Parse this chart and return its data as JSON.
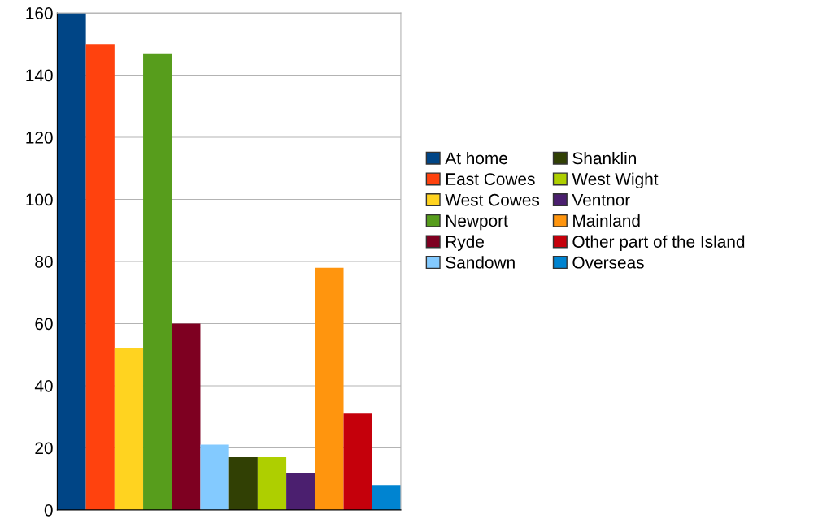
{
  "chart_data": {
    "type": "bar",
    "categories": [
      null
    ],
    "series": [
      {
        "name": "At home",
        "color": "#004586",
        "values": [
          160
        ]
      },
      {
        "name": "East Cowes",
        "color": "#ff420e",
        "values": [
          150
        ]
      },
      {
        "name": "West Cowes",
        "color": "#ffd320",
        "values": [
          52
        ]
      },
      {
        "name": "Newport",
        "color": "#579d1c",
        "values": [
          147
        ]
      },
      {
        "name": "Ryde",
        "color": "#7e0021",
        "values": [
          60
        ]
      },
      {
        "name": "Sandown",
        "color": "#83caff",
        "values": [
          21
        ]
      },
      {
        "name": "Shanklin",
        "color": "#314004",
        "values": [
          17
        ]
      },
      {
        "name": "West Wight",
        "color": "#aecf00",
        "values": [
          17
        ]
      },
      {
        "name": "Ventnor",
        "color": "#4b1f6f",
        "values": [
          12
        ]
      },
      {
        "name": "Mainland",
        "color": "#ff950e",
        "values": [
          78
        ]
      },
      {
        "name": "Other part of the Island",
        "color": "#c5000b",
        "values": [
          31
        ]
      },
      {
        "name": "Overseas",
        "color": "#0084d1",
        "values": [
          8
        ]
      }
    ],
    "ylim": [
      0,
      160
    ],
    "yticks": [
      0,
      20,
      40,
      60,
      80,
      100,
      120,
      140,
      160
    ],
    "grid": "y",
    "legend": "right",
    "tick_labels": "y"
  }
}
